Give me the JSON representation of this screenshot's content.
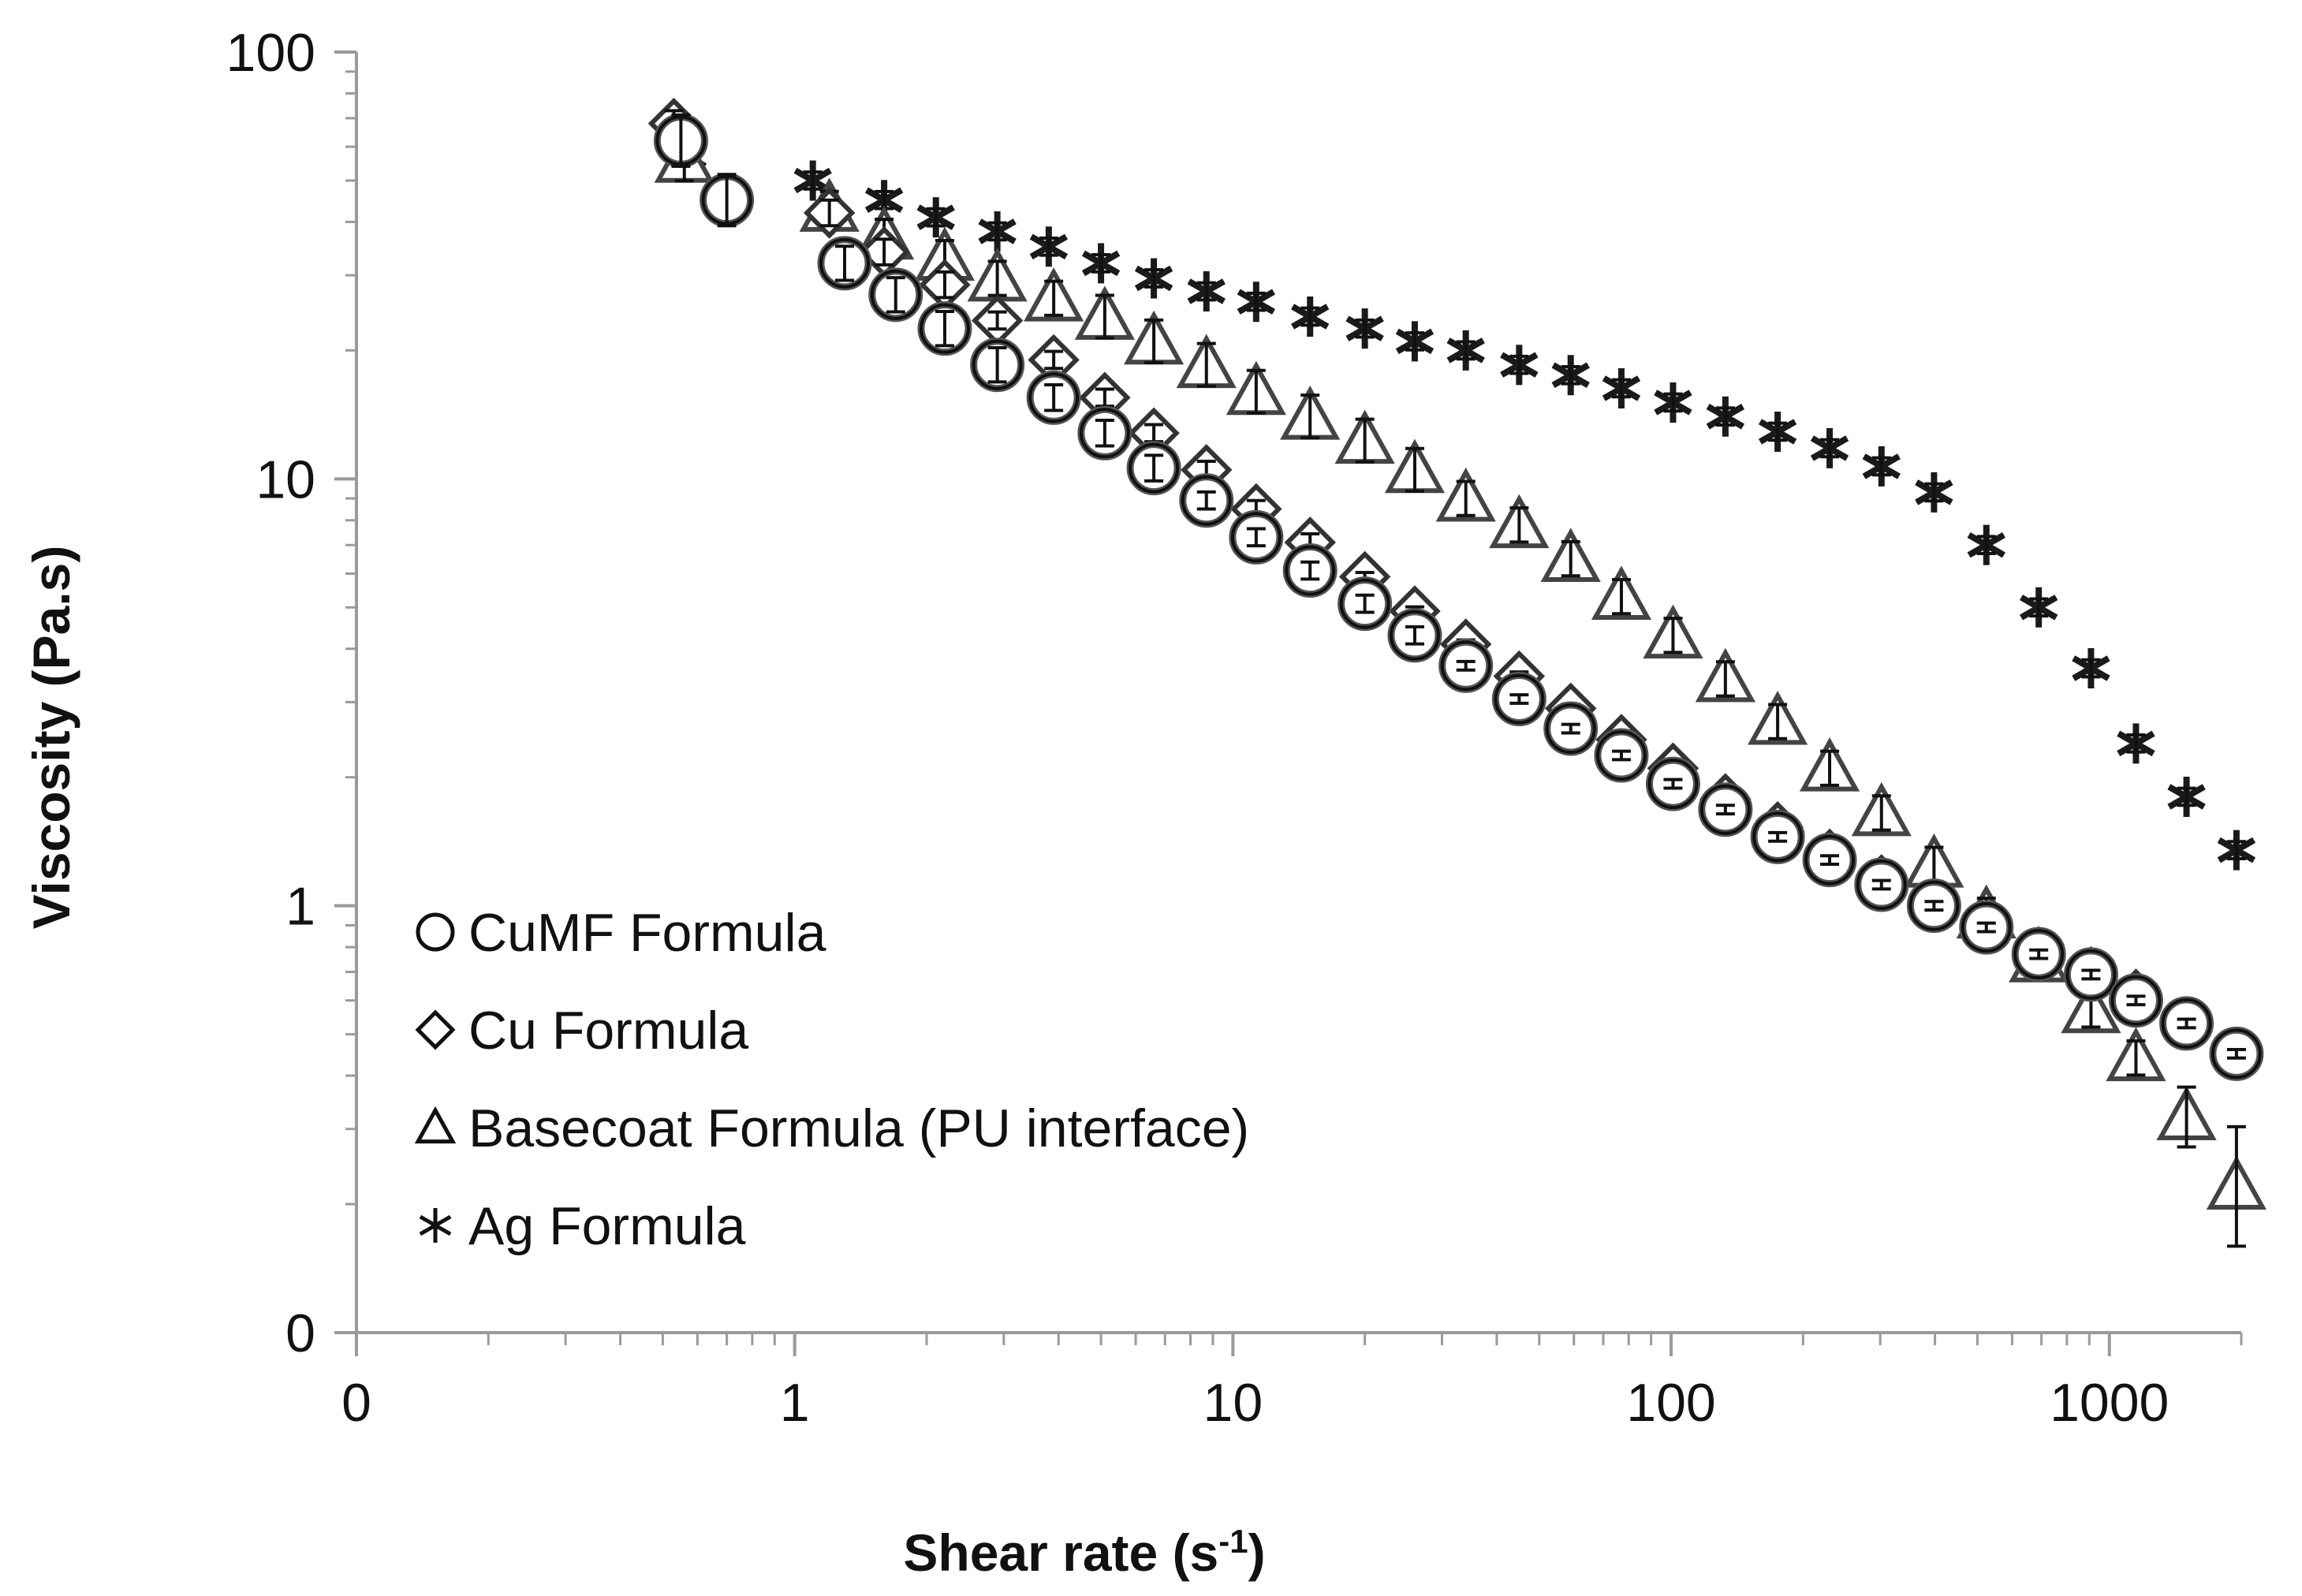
{
  "chart_data": {
    "type": "scatter",
    "title": "",
    "xlabel": "Shear rate (s",
    "xlabel_sup": "-1",
    "xlabel_close": ")",
    "ylabel": "Viscosity (Pa.s)",
    "xscale": "log",
    "yscale": "log",
    "xlim": [
      0.1,
      2000
    ],
    "ylim": [
      0.1,
      100
    ],
    "x_ticks": [
      {
        "value": 0.1,
        "label": "0"
      },
      {
        "value": 1,
        "label": "1"
      },
      {
        "value": 10,
        "label": "10"
      },
      {
        "value": 100,
        "label": "100"
      },
      {
        "value": 1000,
        "label": "1000"
      }
    ],
    "y_ticks": [
      {
        "value": 0.1,
        "label": "0"
      },
      {
        "value": 1,
        "label": "1"
      },
      {
        "value": 10,
        "label": "10"
      },
      {
        "value": 100,
        "label": "100"
      }
    ],
    "legend_position": "bottom-left",
    "series": [
      {
        "name": "CuMF Formula",
        "marker": "circle",
        "x": [
          0.55,
          0.7,
          1.3,
          1.7,
          2.2,
          2.9,
          3.9,
          5.1,
          6.6,
          8.7,
          11.3,
          15,
          20,
          26,
          34,
          45,
          59,
          77,
          101,
          133,
          175,
          230,
          302,
          398,
          524,
          690,
          908,
          1150,
          1500,
          1950
        ],
        "y": [
          62,
          45,
          32,
          27,
          22.5,
          18.5,
          15.5,
          12.8,
          10.6,
          8.9,
          7.3,
          6.1,
          5.1,
          4.3,
          3.65,
          3.05,
          2.6,
          2.25,
          1.93,
          1.68,
          1.45,
          1.28,
          1.12,
          1.0,
          0.89,
          0.77,
          0.69,
          0.6,
          0.53,
          0.45
        ],
        "err": [
          0.06,
          0.06,
          0.04,
          0.04,
          0.04,
          0.04,
          0.03,
          0.03,
          0.03,
          0.02,
          0.02,
          0.02,
          0.02,
          0.02,
          0.01,
          0.01,
          0.01,
          0.01,
          0.01,
          0.01,
          0.01,
          0.01,
          0.01,
          0.01,
          0.01,
          0.01,
          0.01,
          0.01,
          0.01,
          0.01
        ]
      },
      {
        "name": "Cu Formula",
        "marker": "diamond",
        "x": [
          0.53,
          1.2,
          1.6,
          2.2,
          2.9,
          3.9,
          5.1,
          6.6,
          8.7,
          11.3,
          15,
          20,
          26,
          34,
          45,
          59,
          77,
          101,
          133,
          175,
          230,
          302,
          398,
          524,
          690,
          908,
          1150,
          1950
        ],
        "y": [
          68,
          42,
          34,
          28.5,
          23.5,
          19,
          15.5,
          12.8,
          10.5,
          8.5,
          7.1,
          5.9,
          4.9,
          4.1,
          3.45,
          2.9,
          2.45,
          2.1,
          1.78,
          1.53,
          1.32,
          1.15,
          1.0,
          0.9,
          0.78,
          0.7,
          0.62,
          0.45
        ],
        "err": [
          0.03,
          0.03,
          0.03,
          0.03,
          0.02,
          0.02,
          0.02,
          0.02,
          0.02,
          0.02,
          0.02,
          0.01,
          0.01,
          0.01,
          0.01,
          0.01,
          0.01,
          0.01,
          0.01,
          0.01,
          0.01,
          0.01,
          0.01,
          0.01,
          0.01,
          0.01,
          0.01,
          0.01
        ]
      },
      {
        "name": "Basecoat Formula (PU interface)",
        "marker": "triangle",
        "x": [
          0.56,
          1.2,
          1.6,
          2.2,
          2.9,
          3.9,
          5.1,
          6.6,
          8.7,
          11.3,
          15,
          20,
          26,
          34,
          45,
          59,
          77,
          101,
          133,
          175,
          230,
          302,
          398,
          524,
          690,
          908,
          1150,
          1500,
          1950
        ],
        "y": [
          56,
          43,
          37,
          33,
          29.5,
          26.5,
          24,
          21,
          18.5,
          16,
          14,
          12.3,
          10.5,
          9,
          7.8,
          6.5,
          5.3,
          4.3,
          3.4,
          2.7,
          2.1,
          1.65,
          1.25,
          0.95,
          0.75,
          0.57,
          0.44,
          0.32,
          0.22
        ],
        "err": [
          0.05,
          0.04,
          0.04,
          0.04,
          0.04,
          0.04,
          0.05,
          0.05,
          0.05,
          0.05,
          0.05,
          0.05,
          0.05,
          0.04,
          0.04,
          0.04,
          0.04,
          0.04,
          0.04,
          0.04,
          0.04,
          0.04,
          0.04,
          0.04,
          0.04,
          0.04,
          0.04,
          0.07,
          0.14
        ]
      },
      {
        "name": "Ag Formula",
        "marker": "asterisk",
        "x": [
          0.57,
          1.1,
          1.6,
          2.1,
          2.9,
          3.8,
          5,
          6.6,
          8.7,
          11.3,
          15,
          20,
          26,
          34,
          45,
          59,
          77,
          101,
          133,
          175,
          230,
          302,
          398,
          524,
          690,
          908,
          1150,
          1500,
          1950
        ],
        "y": [
          57,
          50,
          45,
          41,
          38,
          35,
          32,
          29.5,
          27.5,
          26,
          24,
          22.5,
          21,
          20,
          18.5,
          17.5,
          16.3,
          15.1,
          14,
          12.9,
          11.8,
          10.7,
          9.3,
          7,
          5,
          3.6,
          2.4,
          1.8,
          1.35
        ],
        "err": [
          0.03,
          0.02,
          0.02,
          0.02,
          0.02,
          0.02,
          0.02,
          0.02,
          0.02,
          0.02,
          0.02,
          0.02,
          0.02,
          0.02,
          0.02,
          0.02,
          0.02,
          0.02,
          0.02,
          0.02,
          0.02,
          0.02,
          0.02,
          0.02,
          0.02,
          0.02,
          0.02,
          0.02,
          0.02
        ]
      }
    ]
  }
}
